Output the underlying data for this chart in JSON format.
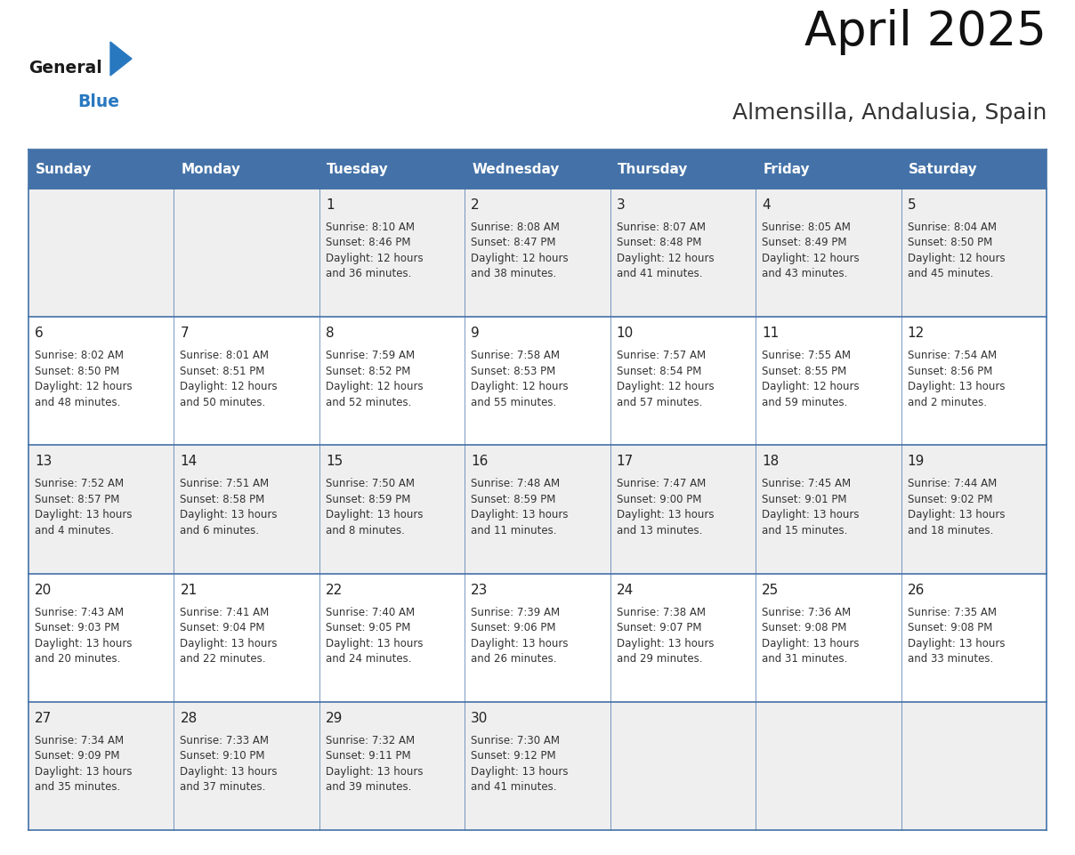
{
  "title": "April 2025",
  "subtitle": "Almensilla, Andalusia, Spain",
  "days_of_week": [
    "Sunday",
    "Monday",
    "Tuesday",
    "Wednesday",
    "Thursday",
    "Friday",
    "Saturday"
  ],
  "header_bg": "#4472a8",
  "header_text": "#ffffff",
  "row_bg_even": "#efefef",
  "row_bg_odd": "#ffffff",
  "border_color": "#4472a8",
  "day_num_color": "#222222",
  "text_color": "#333333",
  "calendar_data": [
    [
      {
        "day": null,
        "sunrise": null,
        "sunset": null,
        "daylight": ""
      },
      {
        "day": null,
        "sunrise": null,
        "sunset": null,
        "daylight": ""
      },
      {
        "day": 1,
        "sunrise": "8:10 AM",
        "sunset": "8:46 PM",
        "daylight": "12 hours\nand 36 minutes."
      },
      {
        "day": 2,
        "sunrise": "8:08 AM",
        "sunset": "8:47 PM",
        "daylight": "12 hours\nand 38 minutes."
      },
      {
        "day": 3,
        "sunrise": "8:07 AM",
        "sunset": "8:48 PM",
        "daylight": "12 hours\nand 41 minutes."
      },
      {
        "day": 4,
        "sunrise": "8:05 AM",
        "sunset": "8:49 PM",
        "daylight": "12 hours\nand 43 minutes."
      },
      {
        "day": 5,
        "sunrise": "8:04 AM",
        "sunset": "8:50 PM",
        "daylight": "12 hours\nand 45 minutes."
      }
    ],
    [
      {
        "day": 6,
        "sunrise": "8:02 AM",
        "sunset": "8:50 PM",
        "daylight": "12 hours\nand 48 minutes."
      },
      {
        "day": 7,
        "sunrise": "8:01 AM",
        "sunset": "8:51 PM",
        "daylight": "12 hours\nand 50 minutes."
      },
      {
        "day": 8,
        "sunrise": "7:59 AM",
        "sunset": "8:52 PM",
        "daylight": "12 hours\nand 52 minutes."
      },
      {
        "day": 9,
        "sunrise": "7:58 AM",
        "sunset": "8:53 PM",
        "daylight": "12 hours\nand 55 minutes."
      },
      {
        "day": 10,
        "sunrise": "7:57 AM",
        "sunset": "8:54 PM",
        "daylight": "12 hours\nand 57 minutes."
      },
      {
        "day": 11,
        "sunrise": "7:55 AM",
        "sunset": "8:55 PM",
        "daylight": "12 hours\nand 59 minutes."
      },
      {
        "day": 12,
        "sunrise": "7:54 AM",
        "sunset": "8:56 PM",
        "daylight": "13 hours\nand 2 minutes."
      }
    ],
    [
      {
        "day": 13,
        "sunrise": "7:52 AM",
        "sunset": "8:57 PM",
        "daylight": "13 hours\nand 4 minutes."
      },
      {
        "day": 14,
        "sunrise": "7:51 AM",
        "sunset": "8:58 PM",
        "daylight": "13 hours\nand 6 minutes."
      },
      {
        "day": 15,
        "sunrise": "7:50 AM",
        "sunset": "8:59 PM",
        "daylight": "13 hours\nand 8 minutes."
      },
      {
        "day": 16,
        "sunrise": "7:48 AM",
        "sunset": "8:59 PM",
        "daylight": "13 hours\nand 11 minutes."
      },
      {
        "day": 17,
        "sunrise": "7:47 AM",
        "sunset": "9:00 PM",
        "daylight": "13 hours\nand 13 minutes."
      },
      {
        "day": 18,
        "sunrise": "7:45 AM",
        "sunset": "9:01 PM",
        "daylight": "13 hours\nand 15 minutes."
      },
      {
        "day": 19,
        "sunrise": "7:44 AM",
        "sunset": "9:02 PM",
        "daylight": "13 hours\nand 18 minutes."
      }
    ],
    [
      {
        "day": 20,
        "sunrise": "7:43 AM",
        "sunset": "9:03 PM",
        "daylight": "13 hours\nand 20 minutes."
      },
      {
        "day": 21,
        "sunrise": "7:41 AM",
        "sunset": "9:04 PM",
        "daylight": "13 hours\nand 22 minutes."
      },
      {
        "day": 22,
        "sunrise": "7:40 AM",
        "sunset": "9:05 PM",
        "daylight": "13 hours\nand 24 minutes."
      },
      {
        "day": 23,
        "sunrise": "7:39 AM",
        "sunset": "9:06 PM",
        "daylight": "13 hours\nand 26 minutes."
      },
      {
        "day": 24,
        "sunrise": "7:38 AM",
        "sunset": "9:07 PM",
        "daylight": "13 hours\nand 29 minutes."
      },
      {
        "day": 25,
        "sunrise": "7:36 AM",
        "sunset": "9:08 PM",
        "daylight": "13 hours\nand 31 minutes."
      },
      {
        "day": 26,
        "sunrise": "7:35 AM",
        "sunset": "9:08 PM",
        "daylight": "13 hours\nand 33 minutes."
      }
    ],
    [
      {
        "day": 27,
        "sunrise": "7:34 AM",
        "sunset": "9:09 PM",
        "daylight": "13 hours\nand 35 minutes."
      },
      {
        "day": 28,
        "sunrise": "7:33 AM",
        "sunset": "9:10 PM",
        "daylight": "13 hours\nand 37 minutes."
      },
      {
        "day": 29,
        "sunrise": "7:32 AM",
        "sunset": "9:11 PM",
        "daylight": "13 hours\nand 39 minutes."
      },
      {
        "day": 30,
        "sunrise": "7:30 AM",
        "sunset": "9:12 PM",
        "daylight": "13 hours\nand 41 minutes."
      },
      {
        "day": null,
        "sunrise": null,
        "sunset": null,
        "daylight": ""
      },
      {
        "day": null,
        "sunrise": null,
        "sunset": null,
        "daylight": ""
      },
      {
        "day": null,
        "sunrise": null,
        "sunset": null,
        "daylight": ""
      }
    ]
  ],
  "logo_general_color": "#1a1a1a",
  "logo_blue_color": "#2878c0",
  "logo_triangle_color": "#2878c0",
  "title_fontsize": 38,
  "subtitle_fontsize": 18,
  "header_fontsize": 11,
  "daynum_fontsize": 11,
  "cell_fontsize": 8.5
}
